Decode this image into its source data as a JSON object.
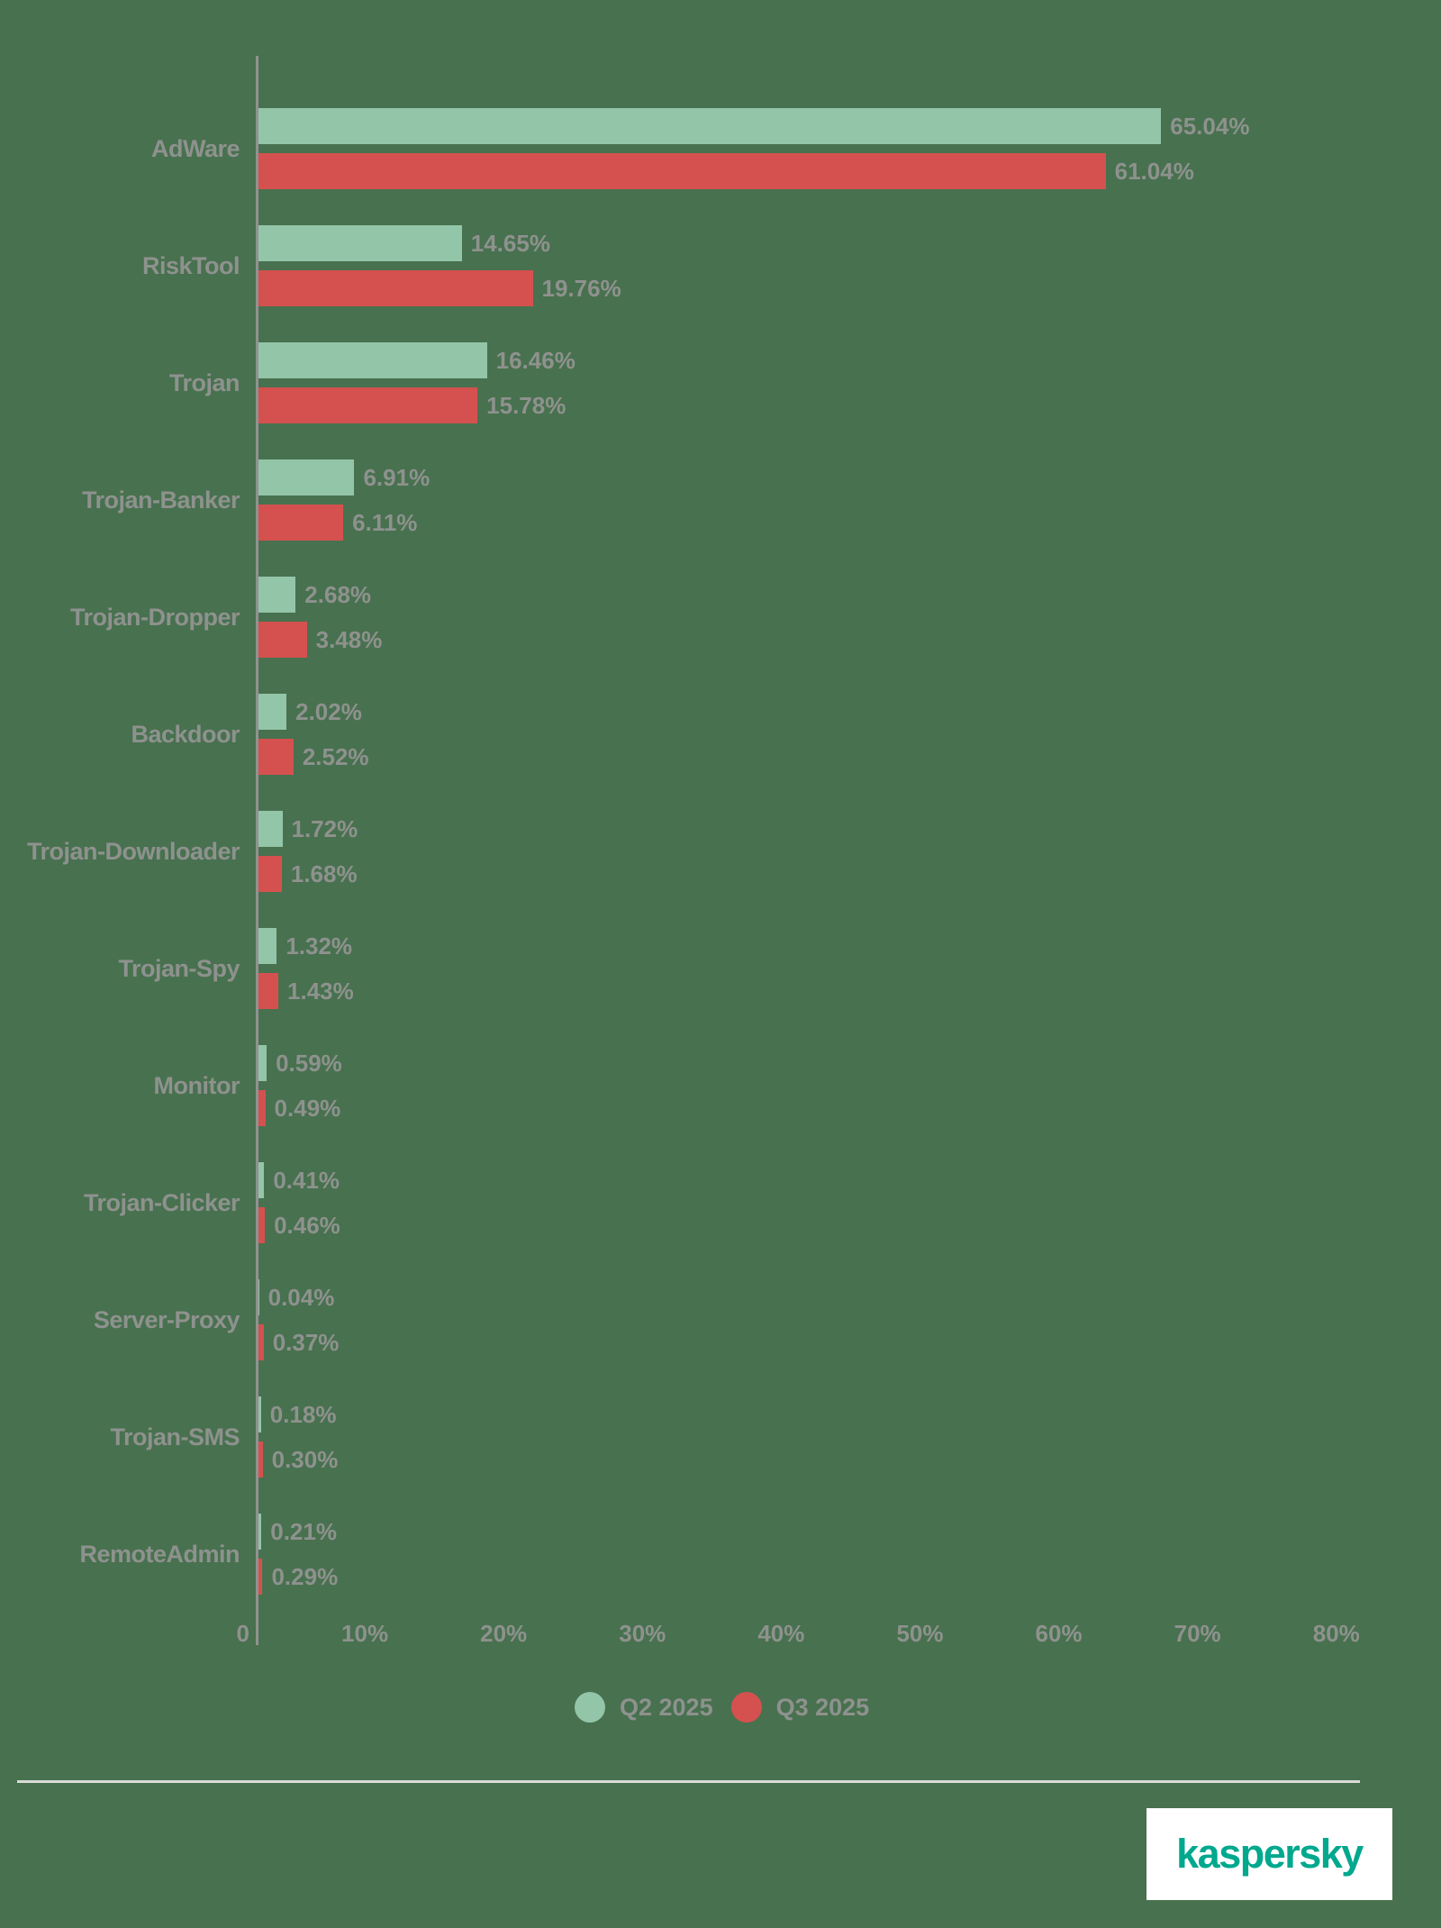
{
  "chart_data": {
    "type": "bar",
    "orientation": "horizontal",
    "title": "",
    "xlabel": "",
    "ylabel": "",
    "categories": [
      "AdWare",
      "RiskTool",
      "Trojan",
      "Trojan-Banker",
      "Trojan-Dropper",
      "Backdoor",
      "Trojan-Downloader",
      "Trojan-Spy",
      "Monitor",
      "Trojan-Clicker",
      "Server-Proxy",
      "Trojan-SMS",
      "RemoteAdmin"
    ],
    "series": [
      {
        "name": "Q2 2025",
        "color": "#93C5A8",
        "values": [
          65.04,
          14.65,
          16.46,
          6.91,
          2.68,
          2.02,
          1.72,
          1.32,
          0.59,
          0.41,
          0.04,
          0.18,
          0.21
        ]
      },
      {
        "name": "Q3 2025",
        "color": "#D5514F",
        "values": [
          61.04,
          19.76,
          15.78,
          6.11,
          3.48,
          2.52,
          1.68,
          1.43,
          0.49,
          0.46,
          0.37,
          0.3,
          0.29
        ]
      }
    ],
    "value_label_suffix": "%",
    "value_label_decimals": 2,
    "x_ticks": [
      {
        "label": "0",
        "value": 0
      },
      {
        "label": "10%",
        "value": 10
      },
      {
        "label": "20%",
        "value": 20
      },
      {
        "label": "30%",
        "value": 30
      },
      {
        "label": "40%",
        "value": 40
      },
      {
        "label": "50%",
        "value": 50
      },
      {
        "label": "60%",
        "value": 60
      },
      {
        "label": "70%",
        "value": 70
      },
      {
        "label": "80%",
        "value": 80
      }
    ],
    "xlim": [
      0,
      80
    ],
    "grid": false,
    "legend_position": "bottom-center"
  },
  "legend": {
    "items": [
      {
        "label": "Q2 2025",
        "color": "#93C5A8"
      },
      {
        "label": "Q3 2025",
        "color": "#D5514F"
      }
    ]
  },
  "footer": {
    "logo_text": "kaspersky"
  },
  "colors": {
    "background": "#48714F",
    "bar_q2": "#93C5A8",
    "bar_q3": "#D5514F",
    "text_gray": "#8E928E",
    "axis_gray": "#8F938F",
    "divider": "#D9DCD9",
    "logo_teal": "#00A88E",
    "logo_background": "#FFFFFF"
  }
}
